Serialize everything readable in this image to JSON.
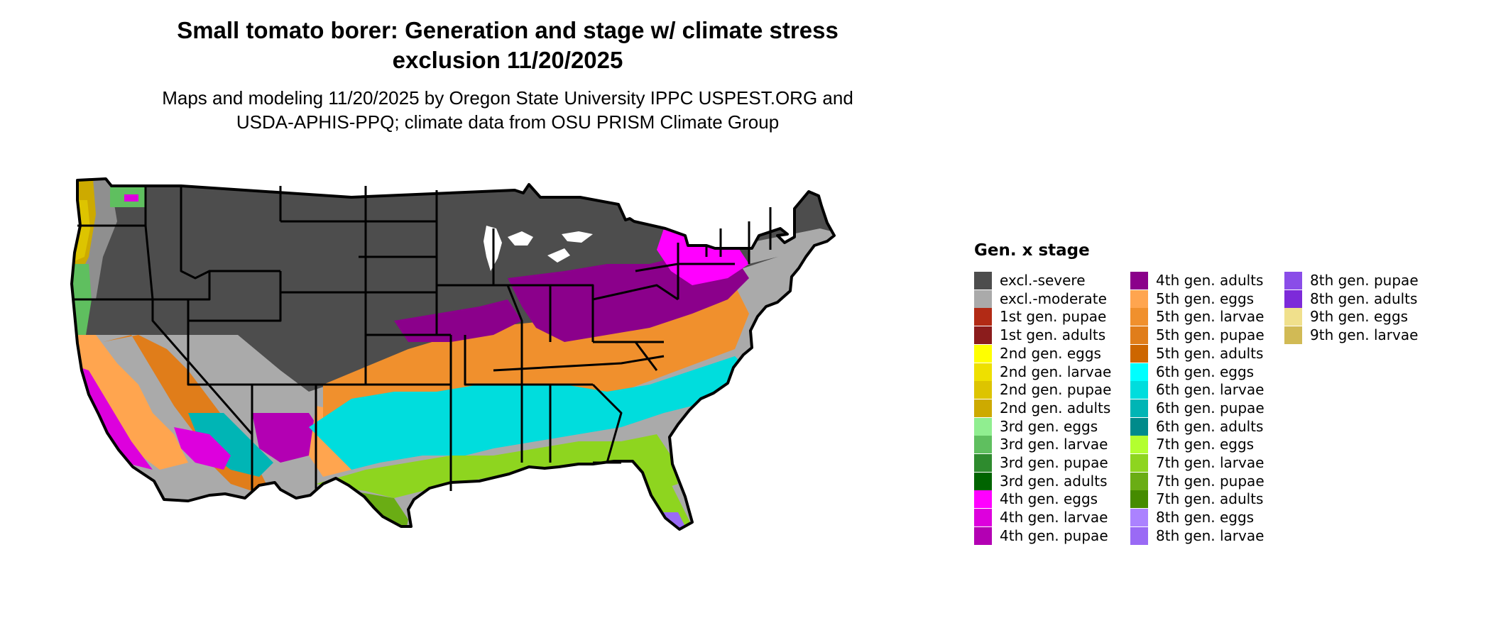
{
  "title": {
    "line1": "Small tomato borer: Generation and stage w/ climate stress",
    "line2": "exclusion 11/20/2025"
  },
  "subtitle": {
    "line1": "Maps and modeling 11/20/2025 by Oregon State University IPPC USPEST.ORG and",
    "line2": "USDA-APHIS-PPQ; climate data from OSU PRISM Climate Group"
  },
  "map": {
    "region": "Contiguous United States",
    "boundaries": "state outlines"
  },
  "legend": {
    "title": "Gen. x stage",
    "columns": [
      [
        {
          "label": "excl.-severe",
          "color": "#4d4d4d"
        },
        {
          "label": "excl.-moderate",
          "color": "#aaaaaa"
        },
        {
          "label": "1st gen. pupae",
          "color": "#b22a15"
        },
        {
          "label": "1st gen. adults",
          "color": "#8b1c1c"
        },
        {
          "label": "2nd gen. eggs",
          "color": "#ffff00"
        },
        {
          "label": "2nd gen. larvae",
          "color": "#eee000"
        },
        {
          "label": "2nd gen. pupae",
          "color": "#ddc400"
        },
        {
          "label": "2nd gen. adults",
          "color": "#cdaa00"
        },
        {
          "label": "3rd gen. eggs",
          "color": "#90ee90"
        },
        {
          "label": "3rd gen. larvae",
          "color": "#5fbf5f"
        },
        {
          "label": "3rd gen. pupae",
          "color": "#2e8b2e"
        },
        {
          "label": "3rd gen. adults",
          "color": "#006400"
        },
        {
          "label": "4th gen. eggs",
          "color": "#ff00ff"
        },
        {
          "label": "4th gen. larvae",
          "color": "#dd00dd"
        },
        {
          "label": "4th gen. pupae",
          "color": "#b300b3"
        }
      ],
      [
        {
          "label": "4th gen. adults",
          "color": "#8b008b"
        },
        {
          "label": "5th gen. eggs",
          "color": "#ffa54f"
        },
        {
          "label": "5th gen. larvae",
          "color": "#f0902d"
        },
        {
          "label": "5th gen. pupae",
          "color": "#e07d1a"
        },
        {
          "label": "5th gen. adults",
          "color": "#cd6600"
        },
        {
          "label": "6th gen. eggs",
          "color": "#00ffff"
        },
        {
          "label": "6th gen. larvae",
          "color": "#00dddd"
        },
        {
          "label": "6th gen. pupae",
          "color": "#00b5b5"
        },
        {
          "label": "6th gen. adults",
          "color": "#008b8b"
        },
        {
          "label": "7th gen. eggs",
          "color": "#b3ff2f"
        },
        {
          "label": "7th gen. larvae",
          "color": "#8ed51f"
        },
        {
          "label": "7th gen. pupae",
          "color": "#6aad14"
        },
        {
          "label": "7th gen. adults",
          "color": "#458b00"
        },
        {
          "label": "8th gen. eggs",
          "color": "#ab82ff"
        },
        {
          "label": "8th gen. larvae",
          "color": "#9a6af5"
        }
      ],
      [
        {
          "label": "8th gen. pupae",
          "color": "#8a4de8"
        },
        {
          "label": "8th gen. adults",
          "color": "#7d2ad9"
        },
        {
          "label": "9th gen. eggs",
          "color": "#f0e08c"
        },
        {
          "label": "9th gen. larvae",
          "color": "#d1ba55"
        }
      ]
    ]
  }
}
